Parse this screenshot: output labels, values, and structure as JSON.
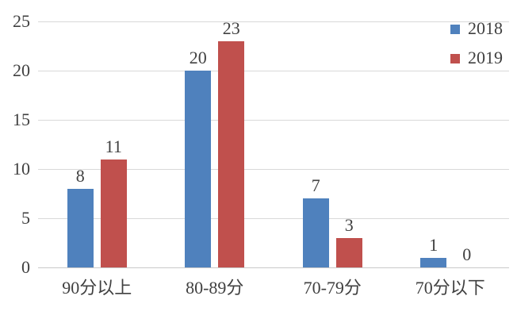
{
  "chart_data": {
    "type": "bar",
    "title": "",
    "xlabel": "",
    "ylabel": "",
    "categories": [
      "90分以上",
      "80-89分",
      "70-79分",
      "70分以下"
    ],
    "series": [
      {
        "name": "2018",
        "color": "#4F81BD",
        "values": [
          8,
          20,
          7,
          1
        ]
      },
      {
        "name": "2019",
        "color": "#C0504D",
        "values": [
          11,
          23,
          3,
          0
        ]
      }
    ],
    "ylim": [
      0,
      25
    ],
    "yticks": [
      0,
      5,
      10,
      15,
      20,
      25
    ],
    "grid": true,
    "value_labels": true,
    "legend_position": "top-right",
    "colors": {
      "background": "#ffffff",
      "text": "#404040",
      "gridline": "#d9d9d9",
      "axis_line": "#c9c9c9"
    }
  }
}
